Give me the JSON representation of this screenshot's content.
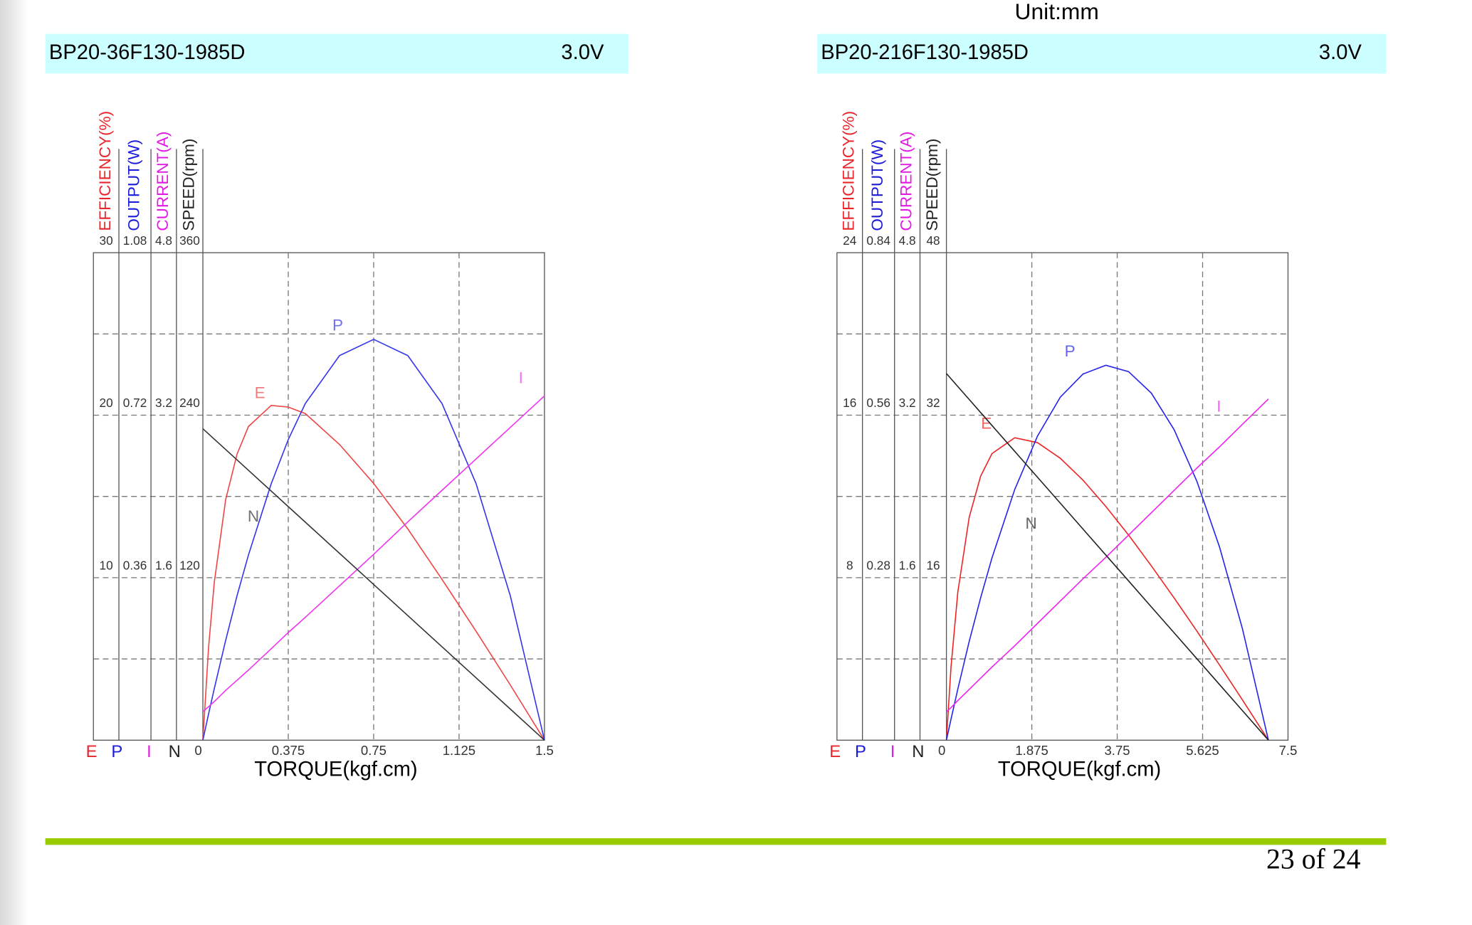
{
  "unit_label": "Unit:mm",
  "page_number": "23 of 24",
  "chart_data": [
    {
      "type": "line",
      "title": "BP20-36F130-1985D",
      "voltage": "3.0V",
      "x_label": "TORQUE(kgf.cm)",
      "xlim": [
        0,
        1.5
      ],
      "xticks": [
        0,
        0.375,
        0.75,
        1.125,
        1.5
      ],
      "ygrid": [
        5,
        10,
        15,
        20,
        25
      ],
      "grid": true,
      "axes": [
        {
          "title": "EFFICIENCY(%)",
          "short": "E",
          "color": "#e8262b",
          "lim": [
            0,
            30
          ],
          "ticks": [
            10,
            20,
            30
          ]
        },
        {
          "title": "OUTPUT(W)",
          "short": "P",
          "color": "#1a1adb",
          "lim": [
            0,
            1.08
          ],
          "ticks": [
            0.36,
            0.72,
            1.08
          ]
        },
        {
          "title": "CURRENT(A)",
          "short": "I",
          "color": "#e21ae2",
          "lim": [
            0,
            4.8
          ],
          "ticks": [
            1.6,
            3.2,
            4.8
          ]
        },
        {
          "title": "SPEED(rpm)",
          "short": "N",
          "color": "#222222",
          "lim": [
            0,
            360
          ],
          "ticks": [
            120,
            240,
            360
          ]
        }
      ],
      "x": [
        0,
        0.025,
        0.05,
        0.1,
        0.15,
        0.2,
        0.3,
        0.375,
        0.45,
        0.6,
        0.75,
        0.9,
        1.05,
        1.2,
        1.35,
        1.5
      ],
      "series": [
        {
          "name": "E",
          "axis": 0,
          "color": "#ee4444",
          "values": [
            0,
            5.7,
            9.7,
            14.8,
            17.6,
            19.3,
            20.6,
            20.5,
            20.1,
            18.2,
            15.8,
            13.0,
            9.9,
            6.7,
            3.4,
            0
          ]
        },
        {
          "name": "P",
          "axis": 1,
          "color": "#3333ee",
          "values": [
            0,
            0.058,
            0.114,
            0.221,
            0.32,
            0.41,
            0.568,
            0.666,
            0.746,
            0.852,
            0.888,
            0.852,
            0.746,
            0.568,
            0.32,
            0
          ]
        },
        {
          "name": "I",
          "axis": 2,
          "color": "#ee33ee",
          "values": [
            0.28,
            0.33,
            0.38,
            0.49,
            0.59,
            0.69,
            0.9,
            1.06,
            1.21,
            1.52,
            1.83,
            2.15,
            2.46,
            2.77,
            3.08,
            3.39
          ]
        },
        {
          "name": "N",
          "axis": 3,
          "color": "#333333",
          "values": [
            230,
            226.2,
            222.3,
            214.7,
            207,
            199.3,
            184,
            172.5,
            161,
            138,
            115,
            92,
            69,
            46,
            23,
            0
          ]
        }
      ]
    },
    {
      "type": "line",
      "title": "BP20-216F130-1985D",
      "voltage": "3.0V",
      "x_label": "TORQUE(kgf.cm)",
      "xlim": [
        0,
        7.5
      ],
      "xticks": [
        0,
        1.875,
        3.75,
        5.625,
        7.5
      ],
      "ygrid": [
        4,
        8,
        12,
        16,
        20
      ],
      "grid": true,
      "axes": [
        {
          "title": "EFFICIENCY(%)",
          "short": "E",
          "color": "#e8262b",
          "lim": [
            0,
            24
          ],
          "ticks": [
            8,
            16,
            24
          ]
        },
        {
          "title": "OUTPUT(W)",
          "short": "P",
          "color": "#1a1adb",
          "lim": [
            0,
            0.84
          ],
          "ticks": [
            0.28,
            0.56,
            0.84
          ]
        },
        {
          "title": "CURRENT(A)",
          "short": "I",
          "color": "#e21ae2",
          "lim": [
            0,
            4.8
          ],
          "ticks": [
            1.6,
            3.2,
            4.8
          ]
        },
        {
          "title": "SPEED(rpm)",
          "short": "N",
          "color": "#222222",
          "lim": [
            0,
            48
          ],
          "ticks": [
            16,
            32,
            48
          ]
        }
      ],
      "x": [
        0,
        0.1,
        0.25,
        0.5,
        0.75,
        1,
        1.5,
        2,
        2.5,
        3,
        3.5,
        4,
        4.5,
        5,
        5.5,
        6,
        6.5,
        7.07
      ],
      "series": [
        {
          "name": "E",
          "axis": 0,
          "color": "#ee2222",
          "values": [
            0,
            3.58,
            7.29,
            10.97,
            12.99,
            14.11,
            14.89,
            14.65,
            13.88,
            12.8,
            11.51,
            10.1,
            8.58,
            7.0,
            5.37,
            3.69,
            1.98,
            0
          ]
        },
        {
          "name": "P",
          "axis": 1,
          "color": "#2222ee",
          "values": [
            0,
            0.036,
            0.088,
            0.17,
            0.245,
            0.314,
            0.432,
            0.524,
            0.591,
            0.631,
            0.646,
            0.635,
            0.598,
            0.535,
            0.446,
            0.332,
            0.192,
            0
          ]
        },
        {
          "name": "I",
          "axis": 2,
          "color": "#ee22ee",
          "values": [
            0.28,
            0.32,
            0.39,
            0.5,
            0.61,
            0.72,
            0.93,
            1.15,
            1.37,
            1.59,
            1.8,
            2.02,
            2.24,
            2.46,
            2.68,
            2.89,
            3.11,
            3.36
          ]
        },
        {
          "name": "N",
          "axis": 3,
          "color": "#222222",
          "values": [
            36.1,
            35.59,
            34.82,
            33.55,
            32.27,
            30.99,
            28.44,
            25.89,
            23.34,
            20.78,
            18.23,
            15.68,
            13.12,
            10.57,
            8.02,
            5.46,
            2.91,
            0
          ]
        }
      ]
    }
  ]
}
